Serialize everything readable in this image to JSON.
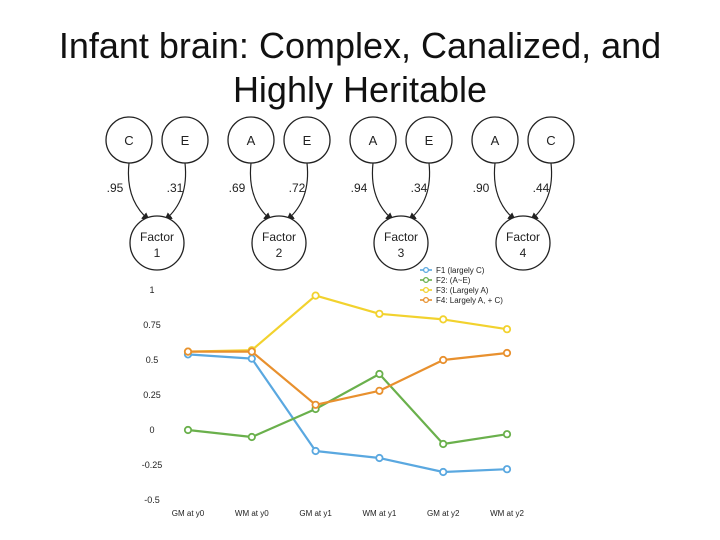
{
  "title": {
    "line1": "Infant brain: Complex, Canalized, and",
    "line2": "Highly Heritable"
  },
  "path_diagram": {
    "groups": [
      {
        "left_node": "C",
        "right_node": "E",
        "left_coef": ".95",
        "right_coef": ".31",
        "factor_line1": "Factor",
        "factor_line2": "1"
      },
      {
        "left_node": "A",
        "right_node": "E",
        "left_coef": ".69",
        "right_coef": ".72",
        "factor_line1": "Factor",
        "factor_line2": "2"
      },
      {
        "left_node": "A",
        "right_node": "E",
        "left_coef": ".94",
        "right_coef": ".34",
        "factor_line1": "Factor",
        "factor_line2": "3"
      },
      {
        "left_node": "A",
        "right_node": "C",
        "left_coef": ".90",
        "right_coef": ".44",
        "factor_line1": "Factor",
        "factor_line2": "4"
      }
    ]
  },
  "colors": {
    "F1": "#5aa8e0",
    "F2": "#6ab04c",
    "F3": "#f2d22e",
    "F4": "#e8902e"
  },
  "chart_data": {
    "type": "line",
    "categories": [
      "GM at y0",
      "WM at y0",
      "GM at y1",
      "WM at y1",
      "GM at y2",
      "WM at y2"
    ],
    "ylim": [
      -0.5,
      1
    ],
    "yticks": [
      "1",
      "0.75",
      "0.5",
      "0.25",
      "0",
      "-0.25",
      "-0.5"
    ],
    "ytick_values": [
      1,
      0.75,
      0.5,
      0.25,
      0,
      -0.25,
      -0.5
    ],
    "legend_position": "top-right",
    "series": [
      {
        "key": "F1",
        "name": "F1 (largely C)",
        "values": [
          0.54,
          0.51,
          -0.15,
          -0.2,
          -0.3,
          -0.28
        ]
      },
      {
        "key": "F2",
        "name": "F2: (A~E)",
        "values": [
          0.0,
          -0.05,
          0.15,
          0.4,
          -0.1,
          -0.03
        ]
      },
      {
        "key": "F3",
        "name": "F3: (Largely A)",
        "values": [
          0.56,
          0.57,
          0.96,
          0.83,
          0.79,
          0.72
        ]
      },
      {
        "key": "F4",
        "name": "F4: Largely A, + C)",
        "values": [
          0.56,
          0.56,
          0.18,
          0.28,
          0.5,
          0.55
        ]
      }
    ]
  }
}
